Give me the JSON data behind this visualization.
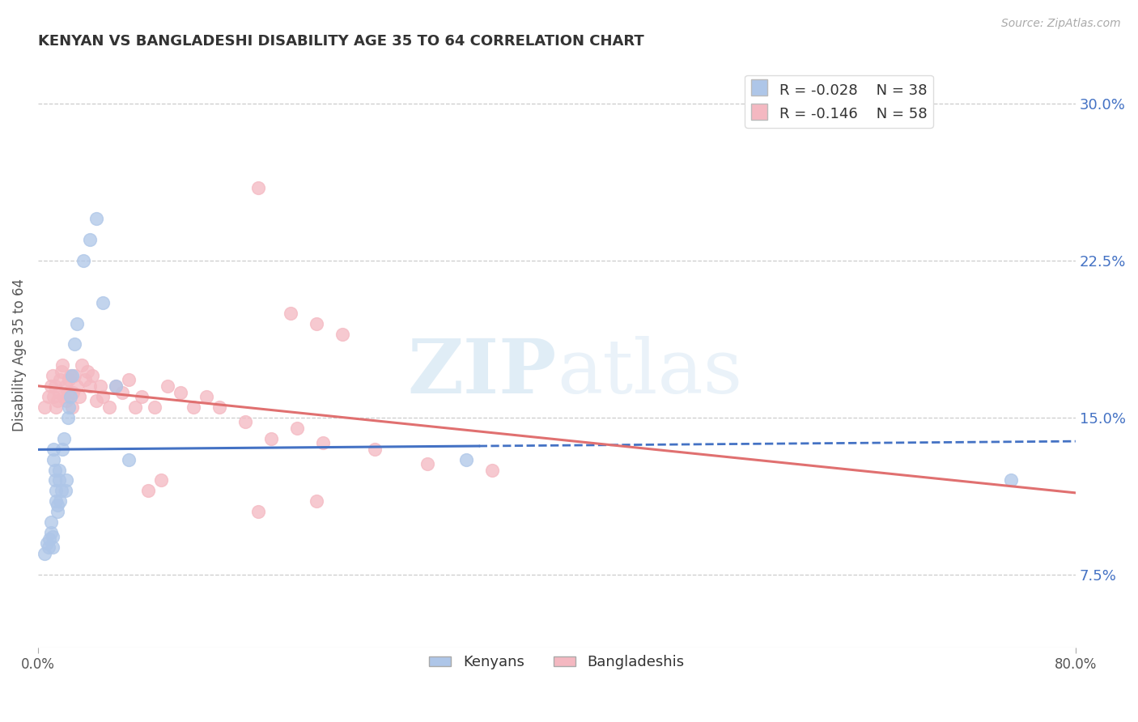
{
  "title": "KENYAN VS BANGLADESHI DISABILITY AGE 35 TO 64 CORRELATION CHART",
  "source_text": "Source: ZipAtlas.com",
  "ylabel": "Disability Age 35 to 64",
  "xlim": [
    0.0,
    0.8
  ],
  "ylim": [
    0.04,
    0.32
  ],
  "xticks": [
    0.0,
    0.8
  ],
  "xticklabels": [
    "0.0%",
    "80.0%"
  ],
  "yticks_right": [
    0.075,
    0.15,
    0.225,
    0.3
  ],
  "yticklabels_right": [
    "7.5%",
    "15.0%",
    "22.5%",
    "30.0%"
  ],
  "legend_R1": "R = -0.028",
  "legend_N1": "N = 38",
  "legend_R2": "R = -0.146",
  "legend_N2": "N = 58",
  "kenyan_color": "#aec6e8",
  "bangladeshi_color": "#f4b8c1",
  "kenyan_line_color": "#4472c4",
  "bangladeshi_line_color": "#e07070",
  "watermark_zip": "ZIP",
  "watermark_atlas": "atlas",
  "kenyan_x": [
    0.005,
    0.007,
    0.008,
    0.009,
    0.01,
    0.01,
    0.011,
    0.011,
    0.012,
    0.012,
    0.013,
    0.013,
    0.014,
    0.014,
    0.015,
    0.015,
    0.016,
    0.016,
    0.017,
    0.018,
    0.019,
    0.02,
    0.021,
    0.022,
    0.023,
    0.024,
    0.025,
    0.026,
    0.028,
    0.03,
    0.035,
    0.04,
    0.045,
    0.05,
    0.06,
    0.07,
    0.33,
    0.75
  ],
  "kenyan_y": [
    0.085,
    0.09,
    0.088,
    0.092,
    0.095,
    0.1,
    0.088,
    0.093,
    0.13,
    0.135,
    0.12,
    0.125,
    0.11,
    0.115,
    0.105,
    0.108,
    0.12,
    0.125,
    0.11,
    0.115,
    0.135,
    0.14,
    0.115,
    0.12,
    0.15,
    0.155,
    0.16,
    0.17,
    0.185,
    0.195,
    0.225,
    0.235,
    0.245,
    0.205,
    0.165,
    0.13,
    0.13,
    0.12
  ],
  "bangladeshi_x": [
    0.005,
    0.008,
    0.01,
    0.011,
    0.012,
    0.013,
    0.014,
    0.015,
    0.016,
    0.017,
    0.018,
    0.019,
    0.02,
    0.021,
    0.022,
    0.023,
    0.024,
    0.025,
    0.026,
    0.027,
    0.028,
    0.03,
    0.032,
    0.034,
    0.036,
    0.038,
    0.04,
    0.042,
    0.045,
    0.048,
    0.05,
    0.055,
    0.06,
    0.065,
    0.07,
    0.075,
    0.08,
    0.09,
    0.1,
    0.11,
    0.12,
    0.13,
    0.14,
    0.16,
    0.18,
    0.2,
    0.22,
    0.26,
    0.3,
    0.35,
    0.17,
    0.195,
    0.215,
    0.235,
    0.215,
    0.17,
    0.085,
    0.095
  ],
  "bangladeshi_y": [
    0.155,
    0.16,
    0.165,
    0.17,
    0.16,
    0.165,
    0.155,
    0.158,
    0.162,
    0.168,
    0.172,
    0.175,
    0.16,
    0.165,
    0.158,
    0.162,
    0.168,
    0.17,
    0.155,
    0.162,
    0.17,
    0.165,
    0.16,
    0.175,
    0.168,
    0.172,
    0.165,
    0.17,
    0.158,
    0.165,
    0.16,
    0.155,
    0.165,
    0.162,
    0.168,
    0.155,
    0.16,
    0.155,
    0.165,
    0.162,
    0.155,
    0.16,
    0.155,
    0.148,
    0.14,
    0.145,
    0.138,
    0.135,
    0.128,
    0.125,
    0.26,
    0.2,
    0.195,
    0.19,
    0.11,
    0.105,
    0.115,
    0.12
  ]
}
